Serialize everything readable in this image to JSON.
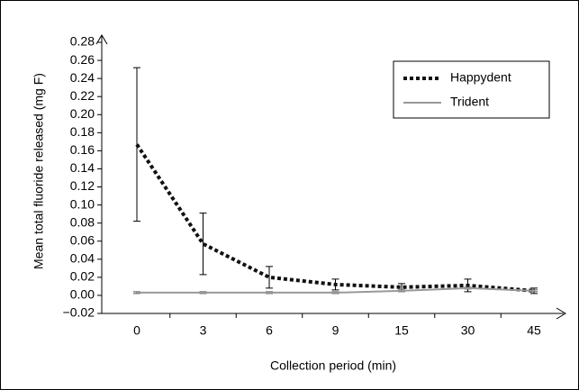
{
  "chart_data": {
    "type": "line",
    "y_label": "Mean total fluoride released (mg F)",
    "x_label": "Collection period (min)",
    "categories": [
      "0",
      "3",
      "6",
      "9",
      "15",
      "30",
      "45"
    ],
    "series": [
      {
        "name": "Happydent",
        "color": "#111111",
        "style": "dotted",
        "values": [
          0.167,
          0.057,
          0.02,
          0.012,
          0.009,
          0.011,
          0.005
        ],
        "errors": [
          0.085,
          0.034,
          0.012,
          0.006,
          0.004,
          0.007,
          0.003
        ]
      },
      {
        "name": "Trident",
        "color": "#999999",
        "style": "solid",
        "values": [
          0.003,
          0.003,
          0.003,
          0.003,
          0.005,
          0.008,
          0.005
        ],
        "errors": [
          0.001,
          0.001,
          0.001,
          0.001,
          0.001,
          0.001,
          0.001
        ]
      }
    ],
    "ylim": [
      -0.02,
      0.28
    ],
    "yticks": [
      {
        "value": -0.02,
        "label": "−0.02"
      },
      {
        "value": 0,
        "label": "0.00"
      },
      0.02,
      0.04,
      0.06,
      0.08,
      {
        "value": 0.1,
        "label": "0.10"
      },
      0.12,
      0.14,
      0.16,
      0.18,
      {
        "value": 0.2,
        "label": "0.20"
      },
      0.22,
      0.24,
      0.26,
      0.28
    ],
    "legend": "upper right"
  }
}
